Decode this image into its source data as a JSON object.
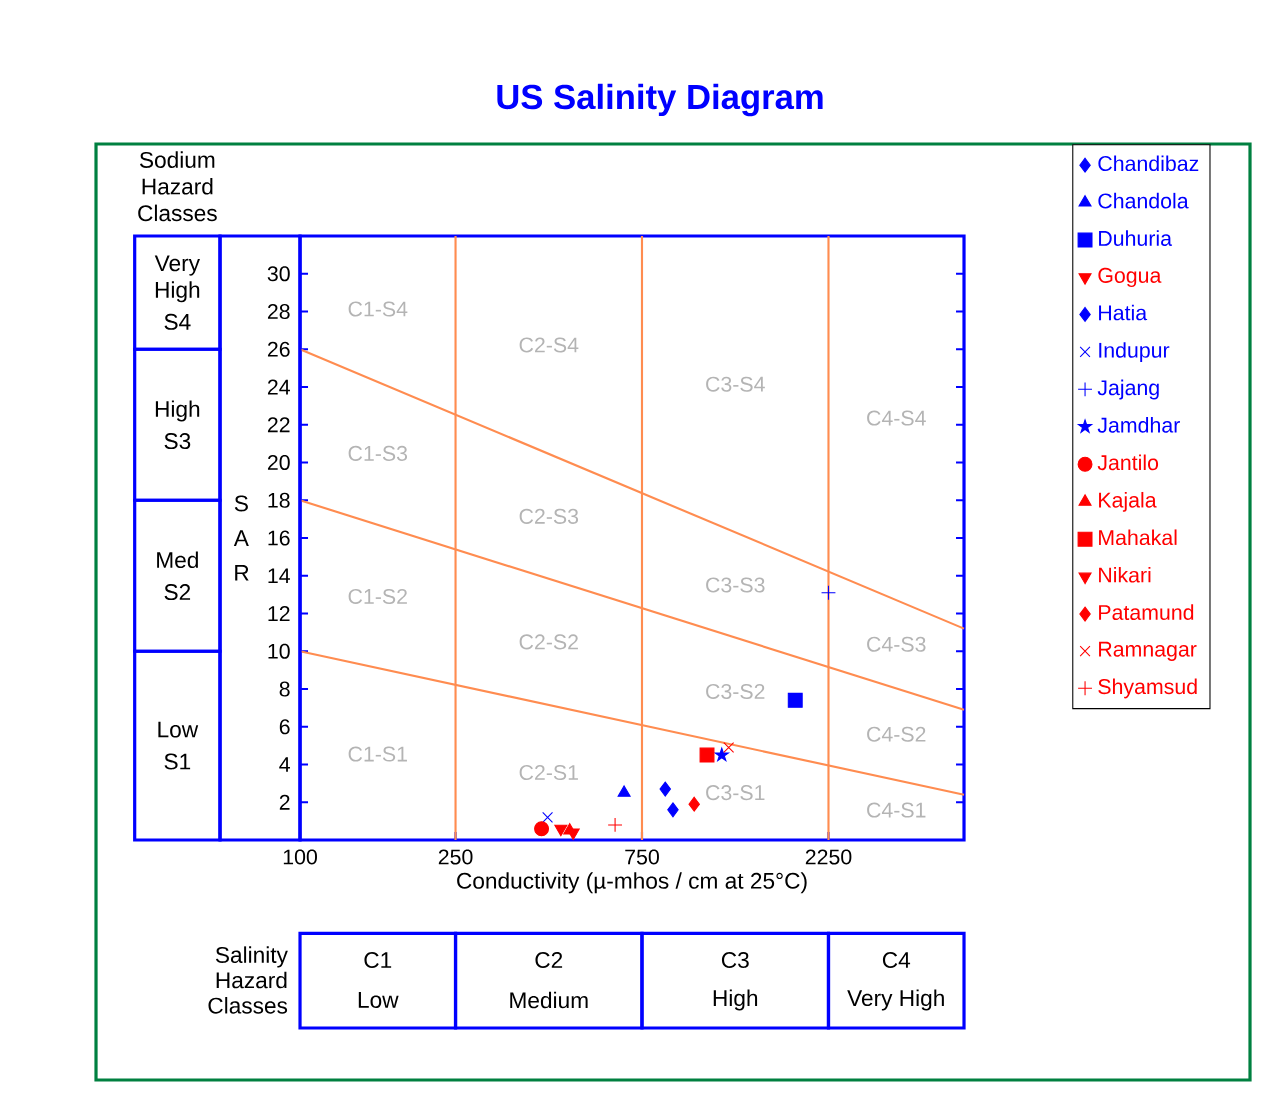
{
  "chart_data": {
    "type": "scatter",
    "title": "US Salinity Diagram",
    "xlabel": "Conductivity (µ-mhos / cm at 25°C)",
    "ylabel": "S A R",
    "log": "x",
    "grid": false,
    "legend": "top right",
    "xlim": [
      100,
      5000
    ],
    "xticks": [
      100,
      250,
      750,
      2250
    ],
    "ylim": [
      0,
      32
    ],
    "yticks": [
      2,
      4,
      6,
      8,
      10,
      12,
      14,
      16,
      18,
      20,
      22,
      24,
      26,
      28,
      30
    ],
    "ref_lines": [
      {
        "axis": "x",
        "value": 250,
        "color": "#ff8c50"
      },
      {
        "axis": "x",
        "value": 750,
        "color": "#ff8c50"
      },
      {
        "axis": "x",
        "value": 2250,
        "color": "#ff8c50"
      }
    ],
    "series": [
      {
        "type": "line",
        "color": "#ff8c50",
        "x": [
          100,
          5000
        ],
        "values": [
          26,
          11.2
        ]
      },
      {
        "type": "line",
        "color": "#ff8c50",
        "x": [
          100,
          5000
        ],
        "values": [
          18,
          6.9
        ]
      },
      {
        "type": "line",
        "color": "#ff8c50",
        "x": [
          100,
          5000
        ],
        "values": [
          10,
          2.4
        ]
      },
      {
        "name": "Chandibaz",
        "color": "#0000ff",
        "marker": "diamond",
        "x": [
          860
        ],
        "values": [
          2.7
        ]
      },
      {
        "name": "Chandola",
        "color": "#0000ff",
        "marker": "triangle",
        "x": [
          675
        ],
        "values": [
          2.5
        ]
      },
      {
        "name": "Duhuria",
        "color": "#0000ff",
        "marker": "square",
        "x": [
          1850
        ],
        "values": [
          7.4
        ]
      },
      {
        "name": "Gogua",
        "color": "#ff0000",
        "marker": "triangle_down",
        "x": [
          465
        ],
        "values": [
          0.6
        ]
      },
      {
        "name": "Hatia",
        "color": "#0000ff",
        "marker": "diamond",
        "x": [
          900
        ],
        "values": [
          1.6
        ]
      },
      {
        "name": "Indupur",
        "color": "#0000ff",
        "marker": "cross",
        "x": [
          430
        ],
        "values": [
          1.2
        ]
      },
      {
        "name": "Jajang",
        "color": "#0000ff",
        "marker": "plus",
        "x": [
          2250
        ],
        "values": [
          13.1
        ]
      },
      {
        "name": "Jamdhar",
        "color": "#0000ff",
        "marker": "star",
        "x": [
          1200
        ],
        "values": [
          4.5
        ]
      },
      {
        "name": "Jantilo",
        "color": "#ff0000",
        "marker": "circle",
        "x": [
          415
        ],
        "values": [
          0.6
        ]
      },
      {
        "name": "Kajala",
        "color": "#ff0000",
        "marker": "triangle",
        "x": [
          490
        ],
        "values": [
          0.5
        ]
      },
      {
        "name": "Mahakal",
        "color": "#ff0000",
        "marker": "square",
        "x": [
          1100
        ],
        "values": [
          4.5
        ]
      },
      {
        "name": "Nikari",
        "color": "#ff0000",
        "marker": "triangle_down",
        "x": [
          500
        ],
        "values": [
          0.4
        ]
      },
      {
        "name": "Patamund",
        "color": "#ff0000",
        "marker": "diamond",
        "x": [
          1020
        ],
        "values": [
          1.9
        ]
      },
      {
        "name": "Ramnagar",
        "color": "#ff0000",
        "marker": "cross",
        "x": [
          1250
        ],
        "values": [
          4.9
        ]
      },
      {
        "name": "Shyamsud",
        "color": "#ff0000",
        "marker": "plus",
        "x": [
          640
        ],
        "values": [
          0.8
        ]
      }
    ],
    "annotations": [
      "Sodium Hazard Classes",
      "Very High",
      "S4",
      "High",
      "S3",
      "Med",
      "S2",
      "Low",
      "S1",
      "Salinity Hazard Classes",
      "C1",
      "Low",
      "C2",
      "Medium",
      "C3",
      "High",
      "C4",
      "Very High",
      "C1-S4",
      "C1-S3",
      "C1-S2",
      "C1-S1",
      "C2-S4",
      "C2-S3",
      "C2-S2",
      "C2-S1",
      "C3-S4",
      "C3-S3",
      "C3-S2",
      "C3-S1",
      "C4-S4",
      "C4-S3",
      "C4-S2",
      "C4-S1"
    ]
  }
}
